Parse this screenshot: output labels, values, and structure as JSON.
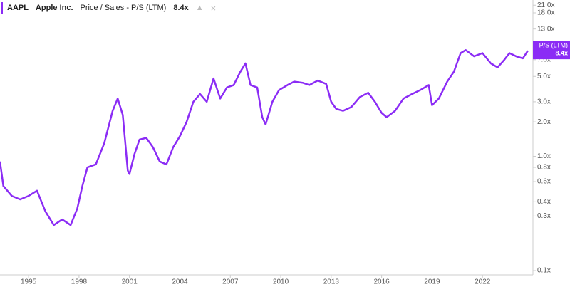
{
  "chart_data": {
    "type": "line",
    "ticker": "AAPL",
    "company": "Apple Inc.",
    "metric": "Price / Sales - P/S (LTM)",
    "current_value": "8.4x",
    "end_label": {
      "name": "P/S (LTM)",
      "value": "8.4x"
    },
    "log_scale": true,
    "grid": false,
    "xlim": [
      1993.3,
      2025.0
    ],
    "xticks": [
      1995,
      1998,
      2001,
      2004,
      2007,
      2010,
      2013,
      2016,
      2019,
      2022
    ],
    "ylim": [
      0.1,
      22
    ],
    "yticks": [
      {
        "value": 0.1,
        "label": "0.1x"
      },
      {
        "value": 0.3,
        "label": "0.3x"
      },
      {
        "value": 0.4,
        "label": "0.4x"
      },
      {
        "value": 0.6,
        "label": "0.6x"
      },
      {
        "value": 0.8,
        "label": "0.8x"
      },
      {
        "value": 1.0,
        "label": "1.0x"
      },
      {
        "value": 2.0,
        "label": "2.0x"
      },
      {
        "value": 3.0,
        "label": "3.0x"
      },
      {
        "value": 5.0,
        "label": "5.0x"
      },
      {
        "value": 7.0,
        "label": "7.0x"
      },
      {
        "value": 13.0,
        "label": "13.0x"
      },
      {
        "value": 18.0,
        "label": "18.0x"
      },
      {
        "value": 21.0,
        "label": "21.0x"
      }
    ],
    "x": [
      1993.3,
      1993.5,
      1994,
      1994.5,
      1995,
      1995.5,
      1996,
      1996.5,
      1997,
      1997.5,
      1997.9,
      1998.2,
      1998.5,
      1999,
      1999.5,
      2000,
      2000.3,
      2000.6,
      2000.9,
      2001,
      2001.3,
      2001.6,
      2002,
      2002.4,
      2002.8,
      2003.2,
      2003.6,
      2004,
      2004.4,
      2004.8,
      2005.2,
      2005.6,
      2006,
      2006.4,
      2006.8,
      2007.2,
      2007.6,
      2007.9,
      2008.2,
      2008.6,
      2008.9,
      2009.1,
      2009.5,
      2009.9,
      2010.4,
      2010.8,
      2011.3,
      2011.7,
      2012.2,
      2012.7,
      2013,
      2013.3,
      2013.7,
      2014.2,
      2014.7,
      2015.2,
      2015.6,
      2016,
      2016.3,
      2016.8,
      2017.3,
      2017.8,
      2018.3,
      2018.8,
      2019,
      2019.4,
      2019.9,
      2020.3,
      2020.7,
      2021,
      2021.5,
      2022,
      2022.5,
      2022.9,
      2023.3,
      2023.6,
      2024,
      2024.4,
      2024.7
    ],
    "series": [
      {
        "name": "P/S (LTM)",
        "color": "#8b2cf5",
        "values": [
          0.9,
          0.55,
          0.45,
          0.42,
          0.45,
          0.5,
          0.33,
          0.25,
          0.28,
          0.25,
          0.35,
          0.55,
          0.8,
          0.85,
          1.3,
          2.5,
          3.2,
          2.3,
          0.75,
          0.7,
          1.05,
          1.4,
          1.45,
          1.2,
          0.9,
          0.85,
          1.2,
          1.5,
          2.0,
          3.0,
          3.5,
          3.0,
          4.8,
          3.2,
          4.0,
          4.2,
          5.5,
          6.5,
          4.2,
          4.0,
          2.2,
          1.9,
          3.0,
          3.8,
          4.2,
          4.5,
          4.4,
          4.2,
          4.6,
          4.3,
          3.0,
          2.6,
          2.5,
          2.7,
          3.3,
          3.6,
          3.0,
          2.4,
          2.2,
          2.5,
          3.2,
          3.5,
          3.8,
          4.2,
          2.8,
          3.2,
          4.5,
          5.5,
          8.0,
          8.5,
          7.5,
          8.0,
          6.5,
          6.0,
          7.0,
          8.0,
          7.5,
          7.2,
          8.4
        ]
      }
    ]
  }
}
